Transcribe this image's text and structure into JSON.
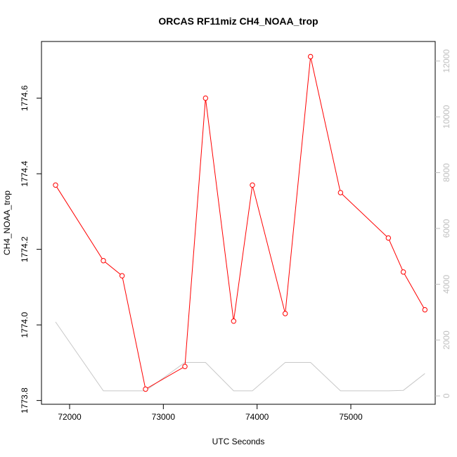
{
  "chart_data": {
    "type": "line",
    "title": "ORCAS RF11miz CH4_NOAA_trop",
    "xlabel": "UTC Seconds",
    "ylabel": "CH4_NOAA_trop",
    "xlim": [
      71700,
      75900
    ],
    "ylim": [
      1773.79,
      1774.75
    ],
    "y2lim": [
      -300,
      12700
    ],
    "xticks": [
      72000,
      73000,
      74000,
      75000
    ],
    "yticks": [
      1773.8,
      1774.0,
      1774.2,
      1774.4,
      1774.6
    ],
    "yticklabels": [
      "1773.8",
      "1774.0",
      "1774.2",
      "1774.4",
      "1774.6"
    ],
    "y2ticks": [
      0,
      2000,
      4000,
      6000,
      8000,
      10000,
      12000
    ],
    "grid": false,
    "series": [
      {
        "axis": "left",
        "color": "#ff0000",
        "marker": "open-circle",
        "x": [
          71850,
          72360,
          72560,
          72810,
          73230,
          73450,
          73750,
          73950,
          74300,
          74570,
          74890,
          75400,
          75560,
          75790
        ],
        "y": [
          1774.37,
          1774.17,
          1774.13,
          1773.83,
          1773.89,
          1774.6,
          1774.01,
          1774.37,
          1774.03,
          1774.71,
          1774.35,
          1774.23,
          1774.14,
          1774.04
        ]
      },
      {
        "axis": "right",
        "color": "#c8c8c8",
        "marker": "none",
        "x": [
          71850,
          72360,
          72560,
          72810,
          73230,
          73450,
          73750,
          73950,
          74300,
          74570,
          74890,
          75400,
          75560,
          75790
        ],
        "y": [
          2650,
          180,
          180,
          180,
          1200,
          1200,
          180,
          180,
          1200,
          1200,
          180,
          180,
          200,
          800
        ]
      }
    ]
  }
}
